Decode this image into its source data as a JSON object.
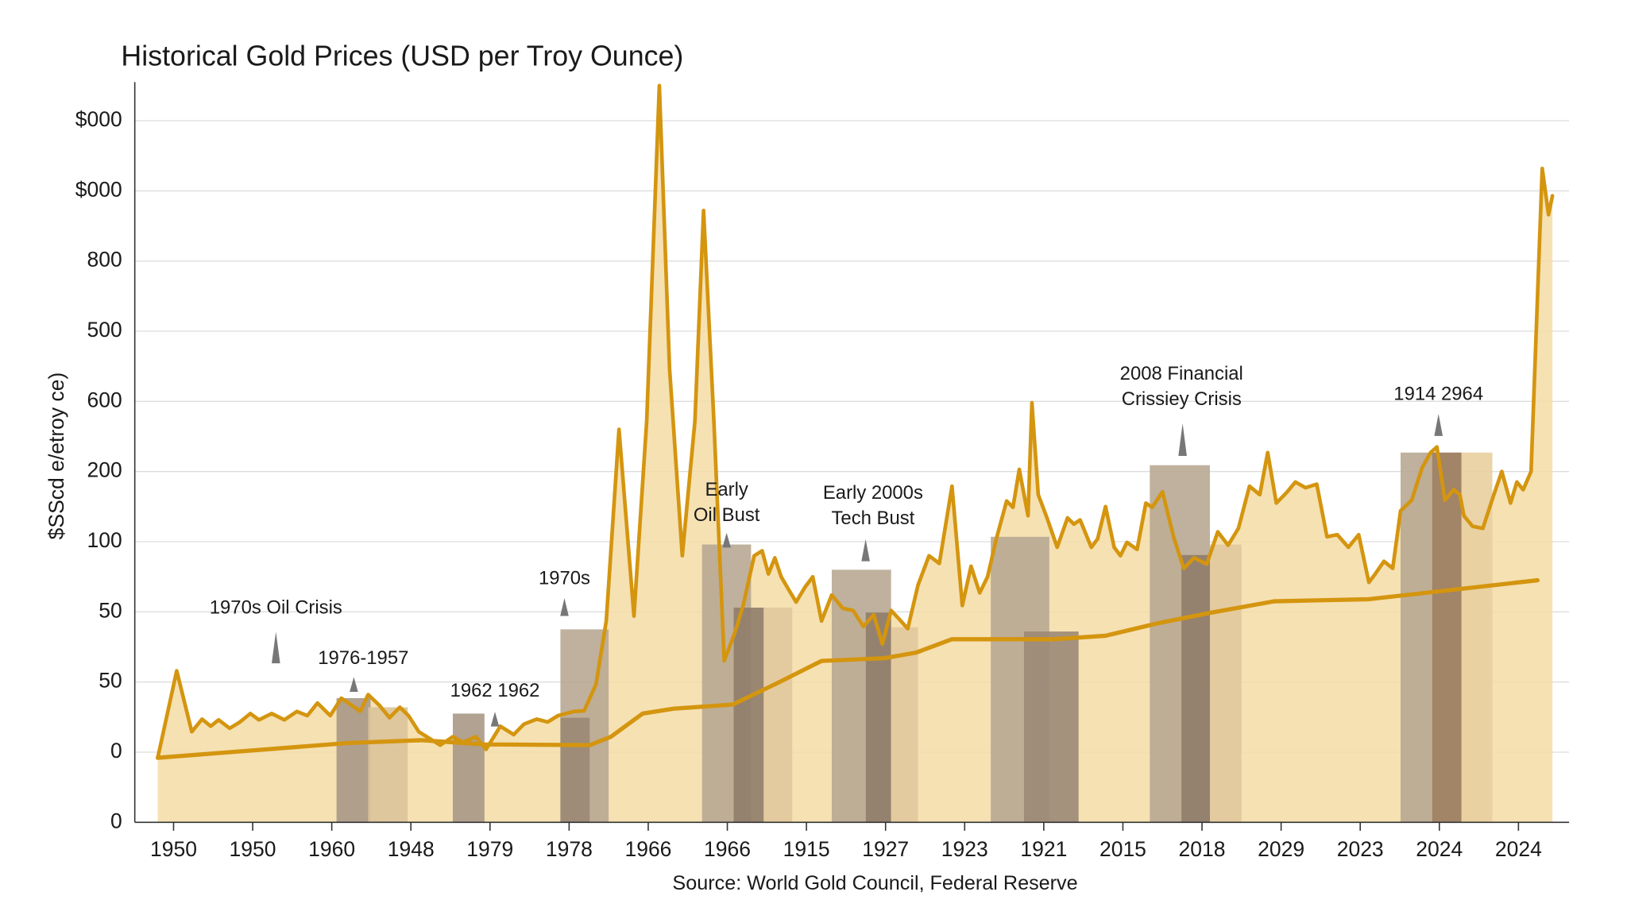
{
  "chart_data": {
    "type": "line",
    "title": "Historical Gold Prices (USD per Troy Ounce)",
    "y_label": "$SScd e/etroy ce)",
    "source": "Source: World Gold Council, Federal Reserve",
    "grid": true,
    "xlim": [
      -0.49,
      17.64
    ],
    "ylim": [
      0,
      10.55
    ],
    "xticks": [
      {
        "value": 0,
        "label": "1950"
      },
      {
        "value": 1,
        "label": "1950"
      },
      {
        "value": 2,
        "label": "1960"
      },
      {
        "value": 3,
        "label": "1948"
      },
      {
        "value": 4,
        "label": "1979"
      },
      {
        "value": 5,
        "label": "1978"
      },
      {
        "value": 6,
        "label": "1966"
      },
      {
        "value": 7,
        "label": "1966"
      },
      {
        "value": 8,
        "label": "1915"
      },
      {
        "value": 9,
        "label": "1927"
      },
      {
        "value": 10,
        "label": "1923"
      },
      {
        "value": 11,
        "label": "1921"
      },
      {
        "value": 12,
        "label": "2015"
      },
      {
        "value": 13,
        "label": "2018"
      },
      {
        "value": 14,
        "label": "2029"
      },
      {
        "value": 15,
        "label": "2023"
      },
      {
        "value": 16,
        "label": "2024"
      },
      {
        "value": 17,
        "label": "2024"
      }
    ],
    "yticks": [
      {
        "value": 0,
        "label": "0"
      },
      {
        "value": 1,
        "label": "0"
      },
      {
        "value": 2,
        "label": "50"
      },
      {
        "value": 3,
        "label": "50"
      },
      {
        "value": 4,
        "label": "100"
      },
      {
        "value": 5,
        "label": "200"
      },
      {
        "value": 6,
        "label": "600"
      },
      {
        "value": 7,
        "label": "500"
      },
      {
        "value": 8,
        "label": "800"
      },
      {
        "value": 9,
        "label": "$000"
      },
      {
        "value": 10,
        "label": "$000"
      }
    ],
    "area_color": "#f5dca6",
    "series": [
      {
        "color": "#d4950f",
        "x": [
          -0.2,
          0.04,
          0.23,
          0.36,
          0.47,
          0.57,
          0.71,
          0.84,
          0.97,
          1.08,
          1.24,
          1.4,
          1.56,
          1.69,
          1.82,
          1.98,
          2.12,
          2.25,
          2.36,
          2.46,
          2.6,
          2.73,
          2.86,
          2.97,
          3.1,
          3.37,
          3.53,
          3.66,
          3.82,
          3.95,
          4.13,
          4.3,
          4.43,
          4.59,
          4.73,
          4.86,
          5.06,
          5.19,
          5.34,
          5.47,
          5.63,
          5.82,
          5.98,
          6.14,
          6.27,
          6.43,
          6.59,
          6.7,
          6.83,
          6.96,
          7.1,
          7.2,
          7.34,
          7.44,
          7.52,
          7.6,
          7.68,
          7.79,
          7.87,
          7.98,
          8.08,
          8.19,
          8.32,
          8.46,
          8.59,
          8.72,
          8.85,
          8.96,
          9.07,
          9.17,
          9.28,
          9.41,
          9.55,
          9.68,
          9.84,
          9.97,
          10.08,
          10.19,
          10.29,
          10.4,
          10.53,
          10.61,
          10.69,
          10.8,
          10.85,
          10.93,
          11.04,
          11.17,
          11.3,
          11.38,
          11.46,
          11.6,
          11.68,
          11.78,
          11.89,
          11.97,
          12.05,
          12.18,
          12.29,
          12.37,
          12.5,
          12.64,
          12.77,
          12.9,
          13.06,
          13.2,
          13.33,
          13.46,
          13.6,
          13.73,
          13.83,
          13.94,
          14.07,
          14.18,
          14.31,
          14.45,
          14.58,
          14.71,
          14.85,
          14.98,
          15.11,
          15.19,
          15.3,
          15.41,
          15.51,
          15.65,
          15.78,
          15.89,
          15.97,
          16.07,
          16.18,
          16.26,
          16.31,
          16.42,
          16.55,
          16.68,
          16.79,
          16.9,
          16.98,
          17.06,
          17.16,
          17.3,
          17.38,
          17.43
        ],
        "values": [
          0.92,
          2.16,
          1.29,
          1.47,
          1.37,
          1.46,
          1.34,
          1.43,
          1.55,
          1.46,
          1.55,
          1.46,
          1.58,
          1.52,
          1.7,
          1.52,
          1.77,
          1.67,
          1.58,
          1.82,
          1.67,
          1.49,
          1.64,
          1.52,
          1.29,
          1.1,
          1.22,
          1.14,
          1.22,
          1.04,
          1.37,
          1.25,
          1.4,
          1.47,
          1.43,
          1.52,
          1.58,
          1.59,
          1.97,
          2.87,
          5.6,
          2.94,
          5.72,
          10.5,
          6.47,
          3.8,
          5.72,
          8.72,
          5.72,
          2.3,
          2.72,
          3.09,
          3.8,
          3.87,
          3.54,
          3.77,
          3.5,
          3.29,
          3.14,
          3.35,
          3.5,
          2.87,
          3.24,
          3.05,
          3.02,
          2.79,
          2.96,
          2.54,
          3.02,
          2.9,
          2.76,
          3.38,
          3.8,
          3.69,
          4.79,
          3.09,
          3.65,
          3.27,
          3.5,
          4.04,
          4.58,
          4.49,
          5.03,
          4.37,
          5.98,
          4.67,
          4.34,
          3.92,
          4.34,
          4.25,
          4.31,
          3.92,
          4.04,
          4.5,
          3.92,
          3.8,
          3.99,
          3.89,
          4.55,
          4.49,
          4.71,
          4.07,
          3.62,
          3.77,
          3.68,
          4.14,
          3.95,
          4.19,
          4.79,
          4.67,
          5.27,
          4.55,
          4.7,
          4.85,
          4.77,
          4.82,
          4.07,
          4.1,
          3.92,
          4.1,
          3.42,
          3.54,
          3.72,
          3.62,
          4.44,
          4.59,
          5.05,
          5.27,
          5.35,
          4.59,
          4.74,
          4.67,
          4.37,
          4.22,
          4.19,
          4.64,
          5.0,
          4.55,
          4.85,
          4.74,
          5.0,
          9.32,
          8.66,
          8.93
        ]
      },
      {
        "color": "#d4950f",
        "x": [
          -0.2,
          2.2,
          3.13,
          3.93,
          5.26,
          5.53,
          5.93,
          6.32,
          7.07,
          7.66,
          8.19,
          8.99,
          9.39,
          9.84,
          11.12,
          11.78,
          12.45,
          13.12,
          13.91,
          15.11,
          17.24
        ],
        "values": [
          0.92,
          1.13,
          1.17,
          1.11,
          1.1,
          1.22,
          1.55,
          1.62,
          1.68,
          2.0,
          2.3,
          2.34,
          2.42,
          2.61,
          2.61,
          2.66,
          2.84,
          2.99,
          3.15,
          3.18,
          3.45
        ]
      }
    ],
    "bars": [
      {
        "x0": 2.06,
        "x1": 2.49,
        "value": 1.77,
        "color": "#a99886"
      },
      {
        "x0": 2.46,
        "x1": 2.96,
        "value": 1.64,
        "color": "#dcc39a"
      },
      {
        "x0": 3.53,
        "x1": 3.93,
        "value": 1.55,
        "color": "#a99886"
      },
      {
        "x0": 4.89,
        "x1": 5.5,
        "value": 2.75,
        "color": "#b8a892"
      },
      {
        "x0": 4.89,
        "x1": 5.26,
        "value": 1.49,
        "color": "#9a8874"
      },
      {
        "x0": 6.68,
        "x1": 7.3,
        "value": 3.96,
        "color": "#b8a892"
      },
      {
        "x0": 7.08,
        "x1": 7.46,
        "value": 3.06,
        "color": "#8f7d6a"
      },
      {
        "x0": 7.46,
        "x1": 7.82,
        "value": 3.06,
        "color": "#e2c99c"
      },
      {
        "x0": 8.32,
        "x1": 9.07,
        "value": 3.6,
        "color": "#b8a892"
      },
      {
        "x0": 8.75,
        "x1": 9.07,
        "value": 2.99,
        "color": "#8f7d6a"
      },
      {
        "x0": 9.07,
        "x1": 9.41,
        "value": 2.78,
        "color": "#e2c99c"
      },
      {
        "x0": 10.33,
        "x1": 11.07,
        "value": 4.07,
        "color": "#b8a892"
      },
      {
        "x0": 10.75,
        "x1": 11.44,
        "value": 2.72,
        "color": "#9c8a76"
      },
      {
        "x0": 12.34,
        "x1": 13.1,
        "value": 5.09,
        "color": "#b8a892"
      },
      {
        "x0": 12.74,
        "x1": 13.1,
        "value": 3.81,
        "color": "#8f7d6a"
      },
      {
        "x0": 13.1,
        "x1": 13.5,
        "value": 3.96,
        "color": "#e2c99c"
      },
      {
        "x0": 15.51,
        "x1": 16.28,
        "value": 5.27,
        "color": "#b8a892"
      },
      {
        "x0": 15.91,
        "x1": 16.28,
        "value": 5.27,
        "color": "#9e8060"
      },
      {
        "x0": 16.28,
        "x1": 16.67,
        "value": 5.27,
        "color": "#e8cf9f"
      }
    ],
    "annotations": [
      {
        "text": [
          "1970s Oil Crisis"
        ]
      },
      {
        "text": [
          "1976-1957"
        ]
      },
      {
        "text": [
          "1962 1962"
        ]
      },
      {
        "text": [
          "1970s"
        ]
      },
      {
        "text": [
          "Early",
          "Oil Bust"
        ]
      },
      {
        "text": [
          "Early 2000s",
          "Tech Bust"
        ]
      },
      {
        "text": [
          "2008 Financial",
          "Crissiey Crisis"
        ]
      },
      {
        "text": [
          "1914 2964"
        ]
      }
    ]
  }
}
